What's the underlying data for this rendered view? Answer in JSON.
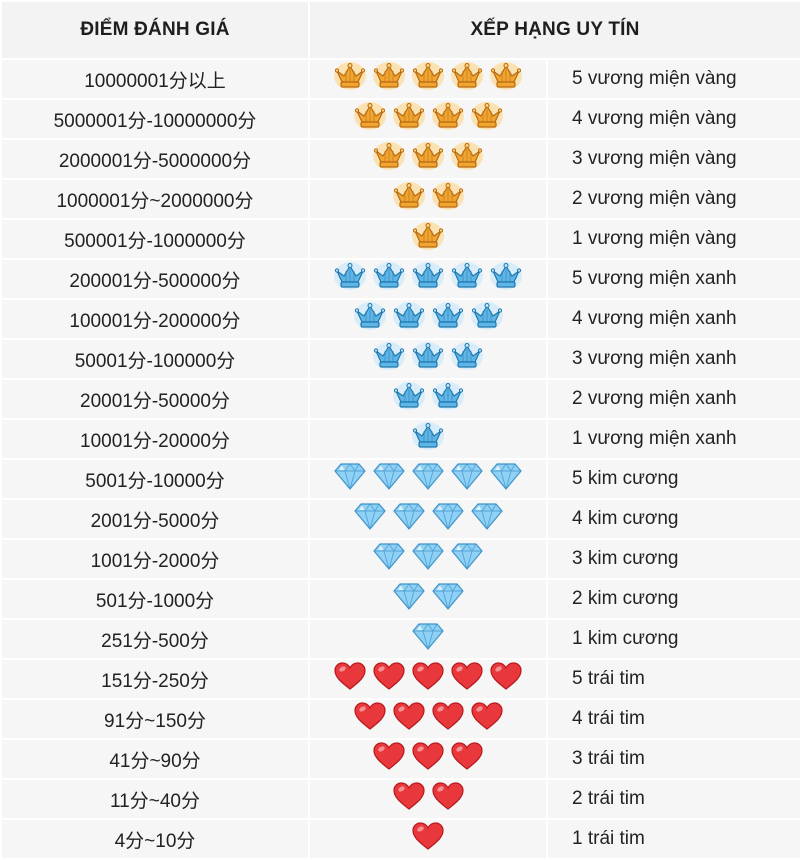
{
  "header": {
    "score_title": "ĐIỂM ĐÁNH GIÁ",
    "rank_title": "XẾP HẠNG UY TÍN"
  },
  "colors": {
    "gold_crown": "#f0a531",
    "blue_crown": "#5fb6e6",
    "diamond": "#8fd0f5",
    "heart": "#e8383c"
  },
  "rows": [
    {
      "score": "10000001分以上",
      "icon": "gold-crown-icon",
      "count": 5,
      "label": "5 vương miện vàng"
    },
    {
      "score": "5000001分-10000000分",
      "icon": "gold-crown-icon",
      "count": 4,
      "label": "4 vương miện vàng"
    },
    {
      "score": "2000001分-5000000分",
      "icon": "gold-crown-icon",
      "count": 3,
      "label": "3 vương miện vàng"
    },
    {
      "score": "1000001分~2000000分",
      "icon": "gold-crown-icon",
      "count": 2,
      "label": "2 vương miện vàng"
    },
    {
      "score": "500001分-1000000分",
      "icon": "gold-crown-icon",
      "count": 1,
      "label": "1 vương miện vàng"
    },
    {
      "score": "200001分-500000分",
      "icon": "blue-crown-icon",
      "count": 5,
      "label": "5 vương miện xanh"
    },
    {
      "score": "100001分-200000分",
      "icon": "blue-crown-icon",
      "count": 4,
      "label": "4 vương miện xanh"
    },
    {
      "score": "50001分-100000分",
      "icon": "blue-crown-icon",
      "count": 3,
      "label": "3 vương miện xanh"
    },
    {
      "score": "20001分-50000分",
      "icon": "blue-crown-icon",
      "count": 2,
      "label": "2 vương miện xanh"
    },
    {
      "score": "10001分-20000分",
      "icon": "blue-crown-icon",
      "count": 1,
      "label": "1 vương miện xanh"
    },
    {
      "score": "5001分-10000分",
      "icon": "diamond-icon",
      "count": 5,
      "label": "5 kim cương"
    },
    {
      "score": "2001分-5000分",
      "icon": "diamond-icon",
      "count": 4,
      "label": "4 kim cương"
    },
    {
      "score": "1001分-2000分",
      "icon": "diamond-icon",
      "count": 3,
      "label": "3 kim cương"
    },
    {
      "score": "501分-1000分",
      "icon": "diamond-icon",
      "count": 2,
      "label": "2 kim cương"
    },
    {
      "score": "251分-500分",
      "icon": "diamond-icon",
      "count": 1,
      "label": "1 kim cương"
    },
    {
      "score": "151分-250分",
      "icon": "heart-icon",
      "count": 5,
      "label": "5 trái tim"
    },
    {
      "score": "91分~150分",
      "icon": "heart-icon",
      "count": 4,
      "label": "4 trái tim"
    },
    {
      "score": "41分~90分",
      "icon": "heart-icon",
      "count": 3,
      "label": "3 trái tim"
    },
    {
      "score": "11分~40分",
      "icon": "heart-icon",
      "count": 2,
      "label": "2 trái tim"
    },
    {
      "score": "4分~10分",
      "icon": "heart-icon",
      "count": 1,
      "label": "1 trái tim"
    }
  ]
}
